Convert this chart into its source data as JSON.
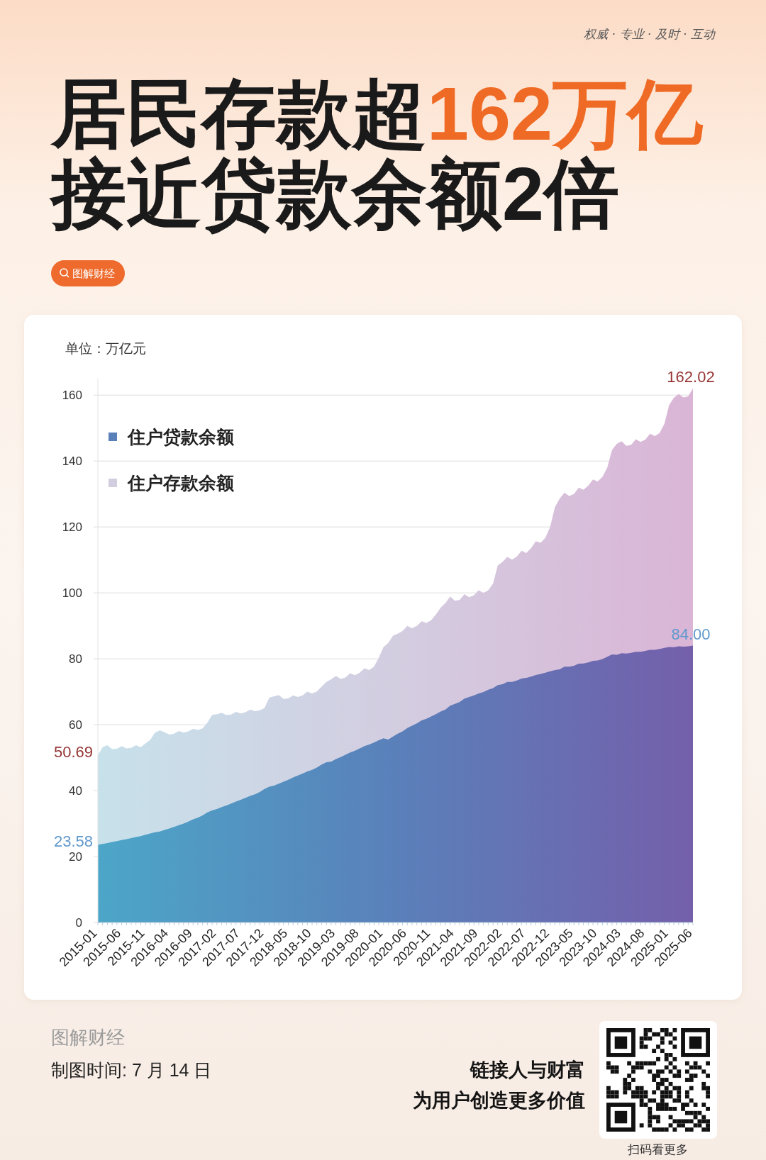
{
  "chart_data": {
    "type": "area",
    "title": "居民存款超162万亿",
    "subtitle": "接近贷款余额2倍",
    "ylabel": "单位：万亿元",
    "categories": [
      "2015-01",
      null,
      null,
      null,
      null,
      "2015-06",
      null,
      null,
      null,
      null,
      "2015-11",
      null,
      null,
      null,
      null,
      "2016-04",
      null,
      null,
      null,
      null,
      "2016-09",
      null,
      null,
      null,
      null,
      "2017-02",
      null,
      null,
      null,
      null,
      "2017-07",
      null,
      null,
      null,
      null,
      "2017-12",
      null,
      null,
      null,
      null,
      "2018-05",
      null,
      null,
      null,
      null,
      "2018-10",
      null,
      null,
      null,
      null,
      "2019-03",
      null,
      null,
      null,
      null,
      "2019-08",
      null,
      null,
      null,
      null,
      "2020-01",
      null,
      null,
      null,
      null,
      "2020-06",
      null,
      null,
      null,
      null,
      "2020-11",
      null,
      null,
      null,
      null,
      "2021-04",
      null,
      null,
      null,
      null,
      "2021-09",
      null,
      null,
      null,
      null,
      "2022-02",
      null,
      null,
      null,
      null,
      "2022-07",
      null,
      null,
      null,
      null,
      "2022-12",
      null,
      null,
      null,
      null,
      "2023-05",
      null,
      null,
      null,
      null,
      "2023-10",
      null,
      null,
      null,
      null,
      "2024-03",
      null,
      null,
      null,
      null,
      "2024-08",
      null,
      null,
      null,
      null,
      "2025-01",
      null,
      null,
      null,
      null,
      "2025-06"
    ],
    "series": [
      {
        "name": "住户贷款余额",
        "color": "#5a80ba",
        "values": [
          23.58,
          23.8,
          24.1,
          24.4,
          24.7,
          25.0,
          25.3,
          25.6,
          25.9,
          26.2,
          26.6,
          27.0,
          27.4,
          27.6,
          28.1,
          28.5,
          29.0,
          29.5,
          30.0,
          30.6,
          31.3,
          31.8,
          32.5,
          33.4,
          34.0,
          34.4,
          35.0,
          35.5,
          36.1,
          36.7,
          37.2,
          37.8,
          38.4,
          38.9,
          39.6,
          40.5,
          41.2,
          41.5,
          42.1,
          42.7,
          43.3,
          44.0,
          44.6,
          45.2,
          45.8,
          46.3,
          47.0,
          47.9,
          48.6,
          48.8,
          49.6,
          50.2,
          50.9,
          51.6,
          52.1,
          52.8,
          53.5,
          54.0,
          54.6,
          55.3,
          55.9,
          55.5,
          56.4,
          57.3,
          58.0,
          59.0,
          59.7,
          60.4,
          61.3,
          61.8,
          62.5,
          63.2,
          64.0,
          64.6,
          65.8,
          66.3,
          66.9,
          67.9,
          68.4,
          68.9,
          69.5,
          69.9,
          70.6,
          71.1,
          72.0,
          72.3,
          73.0,
          73.0,
          73.4,
          74.0,
          74.2,
          74.6,
          75.1,
          75.4,
          75.8,
          76.2,
          76.6,
          76.8,
          77.6,
          77.6,
          77.9,
          78.5,
          78.6,
          78.9,
          79.4,
          79.5,
          79.9,
          80.6,
          81.3,
          81.2,
          81.7,
          81.6,
          81.8,
          82.1,
          82.1,
          82.4,
          82.7,
          82.7,
          83.0,
          83.3,
          83.6,
          83.5,
          83.8,
          83.7,
          83.8,
          84.0
        ],
        "value_labels": [
          "23.58",
          null,
          null,
          null,
          null,
          null,
          null,
          null,
          null,
          null,
          null,
          null,
          null,
          null,
          null,
          null,
          null,
          null,
          null,
          null,
          null,
          null,
          null,
          null,
          null,
          null,
          null,
          null,
          null,
          null,
          null,
          null,
          null,
          null,
          null,
          null,
          null,
          null,
          null,
          null,
          null,
          null,
          null,
          null,
          null,
          null,
          null,
          null,
          null,
          null,
          null,
          null,
          null,
          null,
          null,
          null,
          null,
          null,
          null,
          null,
          null,
          null,
          null,
          null,
          null,
          null,
          null,
          null,
          null,
          null,
          null,
          null,
          null,
          null,
          null,
          null,
          null,
          null,
          null,
          null,
          null,
          null,
          null,
          null,
          null,
          null,
          null,
          null,
          null,
          null,
          null,
          null,
          null,
          null,
          null,
          null,
          null,
          null,
          null,
          null,
          null,
          null,
          null,
          null,
          null,
          null,
          null,
          null,
          null,
          null,
          null,
          null,
          null,
          null,
          null,
          null,
          null,
          null,
          null,
          null,
          null,
          null,
          null,
          null,
          null,
          "84.00"
        ]
      },
      {
        "name": "住户存款余额",
        "color": "#d3cde0",
        "values": [
          50.69,
          53.2,
          53.8,
          52.6,
          52.7,
          53.5,
          52.8,
          53.0,
          53.8,
          53.2,
          54.3,
          55.4,
          57.6,
          58.3,
          57.7,
          57.0,
          57.3,
          58.1,
          57.6,
          58.0,
          58.8,
          58.4,
          58.9,
          60.6,
          63.0,
          63.2,
          63.6,
          62.9,
          63.1,
          63.9,
          63.4,
          63.8,
          64.6,
          64.1,
          64.4,
          65.0,
          68.2,
          68.6,
          69.0,
          67.8,
          68.0,
          68.9,
          68.4,
          68.9,
          70.0,
          69.5,
          70.1,
          71.6,
          73.0,
          73.8,
          74.8,
          73.9,
          74.3,
          75.6,
          75.0,
          75.8,
          77.1,
          76.6,
          77.6,
          80.3,
          83.6,
          84.8,
          87.0,
          87.6,
          88.4,
          90.0,
          89.3,
          90.0,
          91.4,
          90.9,
          91.7,
          93.4,
          95.5,
          96.9,
          98.9,
          97.6,
          97.9,
          99.6,
          98.7,
          99.3,
          100.8,
          100.0,
          100.8,
          102.8,
          108.3,
          109.4,
          110.9,
          110.1,
          111.0,
          112.8,
          112.1,
          113.6,
          115.7,
          115.2,
          116.7,
          120.0,
          126.0,
          128.6,
          130.4,
          129.4,
          130.0,
          131.9,
          131.3,
          132.5,
          134.4,
          133.8,
          135.2,
          138.0,
          143.4,
          145.2,
          146.0,
          144.6,
          144.9,
          146.6,
          145.8,
          146.5,
          148.3,
          147.6,
          148.5,
          151.3,
          157.0,
          159.2,
          160.3,
          159.3,
          159.6,
          162.02
        ],
        "value_labels": [
          "50.69",
          null,
          null,
          null,
          null,
          null,
          null,
          null,
          null,
          null,
          null,
          null,
          null,
          null,
          null,
          null,
          null,
          null,
          null,
          null,
          null,
          null,
          null,
          null,
          null,
          null,
          null,
          null,
          null,
          null,
          null,
          null,
          null,
          null,
          null,
          null,
          null,
          null,
          null,
          null,
          null,
          null,
          null,
          null,
          null,
          null,
          null,
          null,
          null,
          null,
          null,
          null,
          null,
          null,
          null,
          null,
          null,
          null,
          null,
          null,
          null,
          null,
          null,
          null,
          null,
          null,
          null,
          null,
          null,
          null,
          null,
          null,
          null,
          null,
          null,
          null,
          null,
          null,
          null,
          null,
          null,
          null,
          null,
          null,
          null,
          null,
          null,
          null,
          null,
          null,
          null,
          null,
          null,
          null,
          null,
          null,
          null,
          null,
          null,
          null,
          null,
          null,
          null,
          null,
          null,
          null,
          null,
          null,
          null,
          null,
          null,
          null,
          null,
          null,
          null,
          null,
          null,
          null,
          null,
          null,
          null,
          null,
          null,
          null,
          null,
          "162.02"
        ]
      }
    ],
    "ylim": [
      0,
      165
    ],
    "yticks": [
      0,
      20,
      40,
      60,
      80,
      100,
      120,
      140,
      160
    ],
    "grid": "y",
    "legend": "top left",
    "annotations": [
      "权威 · 专业 · 及时 · 互动",
      "图解财经",
      "图解财经",
      "制图时间: 7 月 14 日",
      "链接人与财富",
      "为用户创造更多价值",
      "扫码看更多"
    ]
  }
}
